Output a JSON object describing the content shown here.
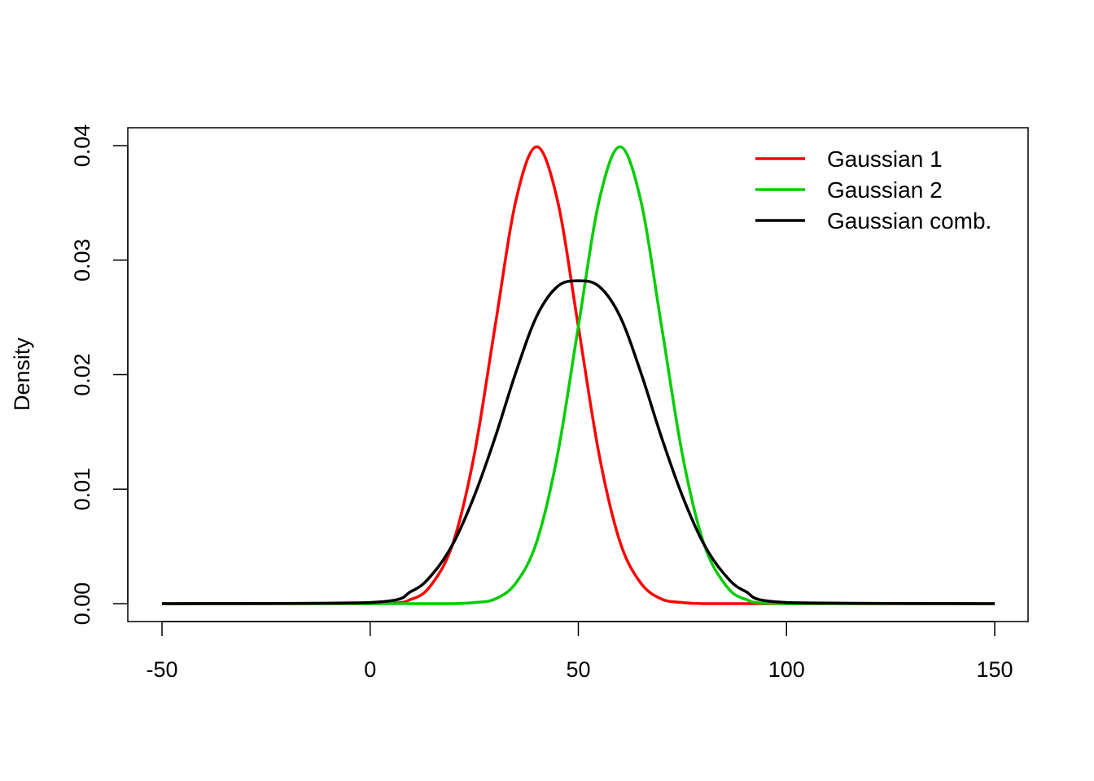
{
  "chart_data": {
    "type": "line",
    "title": "",
    "xlabel": "",
    "ylabel": "Density",
    "xlim": [
      -50,
      150
    ],
    "ylim": [
      0,
      0.04
    ],
    "xticks": [
      -50,
      0,
      50,
      100,
      150
    ],
    "xtick_labels": [
      "-50",
      "0",
      "50",
      "100",
      "150"
    ],
    "yticks": [
      0,
      0.01,
      0.02,
      0.03,
      0.04
    ],
    "ytick_labels": [
      "0.00",
      "0.01",
      "0.02",
      "0.03",
      "0.04"
    ],
    "grid": false,
    "legend_position": "top-right",
    "x": [
      -50,
      0,
      10,
      15,
      20,
      25,
      30,
      35,
      40,
      45,
      50,
      55,
      60,
      65,
      70,
      75,
      80,
      85,
      90,
      100,
      150
    ],
    "series": [
      {
        "name": "Gaussian 1",
        "color": "#ff0000",
        "values": [
          0,
          0.0,
          0.0004,
          0.0018,
          0.0054,
          0.013,
          0.0242,
          0.0352,
          0.0399,
          0.0352,
          0.0242,
          0.013,
          0.0054,
          0.0018,
          0.0004,
          0.0001,
          0.0,
          0.0,
          0.0,
          0.0,
          0
        ]
      },
      {
        "name": "Gaussian 2",
        "color": "#00cd00",
        "values": [
          0,
          0.0,
          0.0,
          0.0,
          0.0,
          0.0001,
          0.0004,
          0.0018,
          0.0054,
          0.013,
          0.0242,
          0.0352,
          0.0399,
          0.0352,
          0.0242,
          0.013,
          0.0054,
          0.0018,
          0.0004,
          0.0,
          0
        ]
      },
      {
        "name": "Gaussian comb.",
        "color": "#000000",
        "values": [
          0,
          0.0001,
          0.0011,
          0.0026,
          0.0053,
          0.0094,
          0.0145,
          0.0202,
          0.0251,
          0.0277,
          0.0282,
          0.0277,
          0.0251,
          0.0202,
          0.0145,
          0.0094,
          0.0053,
          0.0026,
          0.0011,
          0.0001,
          0
        ]
      }
    ]
  }
}
